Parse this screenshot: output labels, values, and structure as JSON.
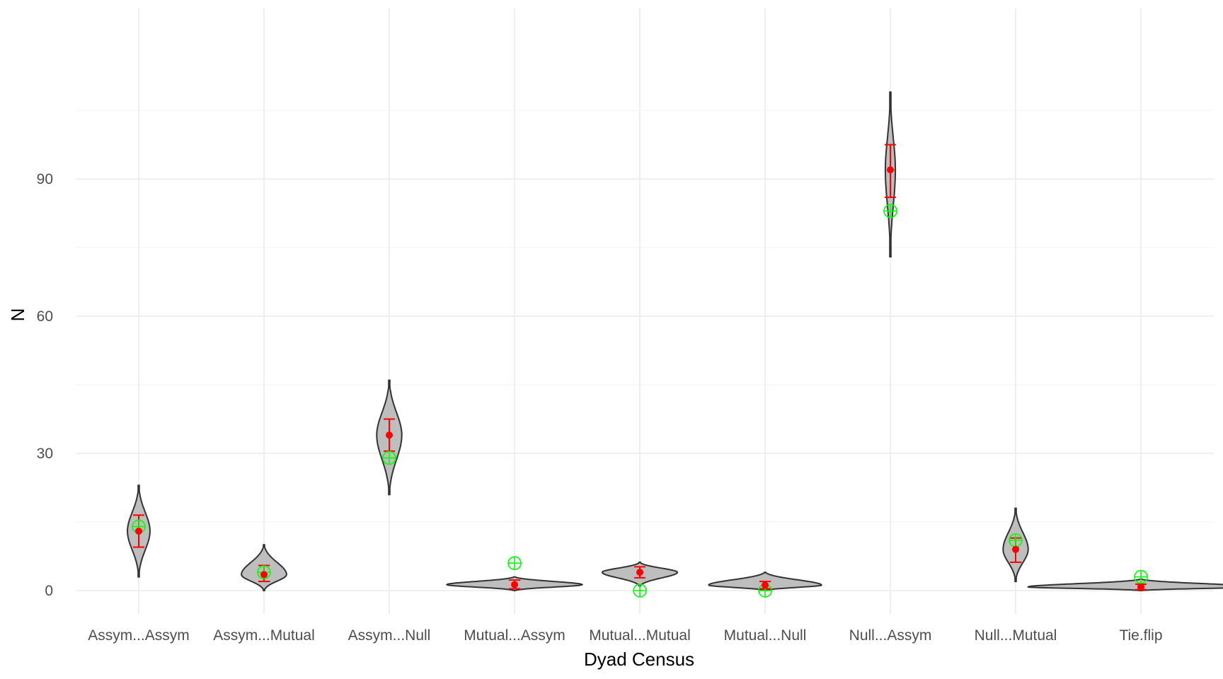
{
  "chart_data": {
    "type": "violin",
    "xlabel": "Dyad Census",
    "ylabel": "N",
    "ylim": [
      -4,
      110
    ],
    "yticks": [
      0,
      30,
      60,
      90
    ],
    "grid": true,
    "categories": [
      "Assym...Assym",
      "Assym...Mutual",
      "Assym...Null",
      "Mutual...Assym",
      "Mutual...Mutual",
      "Mutual...Null",
      "Null...Assym",
      "Null...Mutual",
      "Tie.flip"
    ],
    "series": [
      {
        "category": "Assym...Assym",
        "min": 3,
        "max": 23,
        "mean": 13,
        "lower": 9.5,
        "upper": 16.5,
        "observed": 14,
        "max_half_width": 0.09
      },
      {
        "category": "Assym...Mutual",
        "min": 0,
        "max": 10,
        "mean": 3.5,
        "lower": 2,
        "upper": 5.5,
        "observed": 4,
        "max_half_width": 0.18
      },
      {
        "category": "Assym...Null",
        "min": 21,
        "max": 46,
        "mean": 34,
        "lower": 30.5,
        "upper": 37.5,
        "observed": 29,
        "max_half_width": 0.1
      },
      {
        "category": "Mutual...Assym",
        "min": 0,
        "max": 3,
        "mean": 1.3,
        "lower": 0.4,
        "upper": 2.3,
        "observed": 6,
        "max_half_width": 0.54
      },
      {
        "category": "Mutual...Mutual",
        "min": 1,
        "max": 6.2,
        "mean": 4,
        "lower": 2.8,
        "upper": 5.2,
        "observed": 0,
        "max_half_width": 0.3
      },
      {
        "category": "Mutual...Null",
        "min": 0,
        "max": 4,
        "mean": 1.2,
        "lower": 0.4,
        "upper": 2,
        "observed": 0,
        "max_half_width": 0.45
      },
      {
        "category": "Null...Assym",
        "min": 73,
        "max": 109,
        "mean": 92,
        "lower": 86,
        "upper": 97.5,
        "observed": 83,
        "max_half_width": 0.04
      },
      {
        "category": "Null...Mutual",
        "min": 2,
        "max": 18,
        "mean": 9,
        "lower": 6.2,
        "upper": 11.5,
        "observed": 11,
        "max_half_width": 0.1
      },
      {
        "category": "Tie.flip",
        "min": 0,
        "max": 2.5,
        "mean": 0.8,
        "lower": 0.2,
        "upper": 1.4,
        "observed": 3,
        "max_half_width": 0.9
      }
    ],
    "colors": {
      "violin_fill": "#bebebe",
      "violin_stroke": "#333333",
      "mean_point": "#ff0000",
      "error_bar": "#ff0000",
      "observed_marker": "#00ff00",
      "grid_major": "#ebebeb",
      "grid_minor": "#f4f4f4"
    }
  }
}
